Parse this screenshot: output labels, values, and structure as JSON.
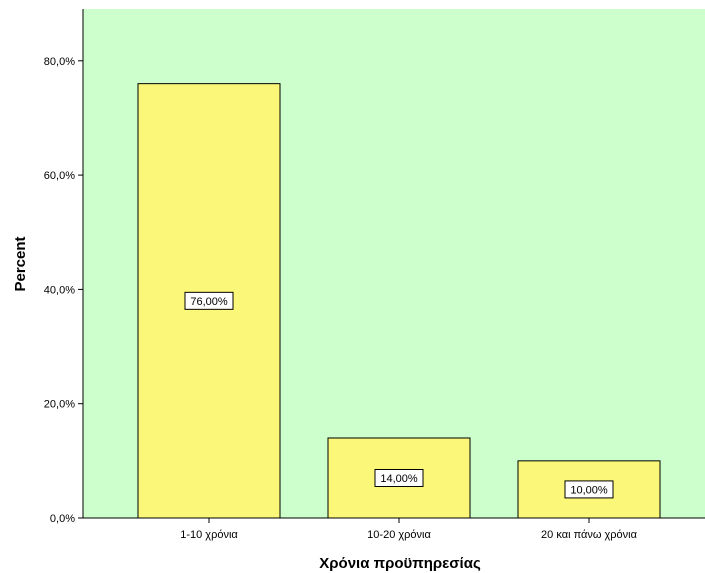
{
  "chart_data": {
    "type": "bar",
    "categories": [
      "1-10 χρόνια",
      "10-20 χρόνια",
      "20 και πάνω χρόνια"
    ],
    "values": [
      76.0,
      14.0,
      10.0
    ],
    "data_labels": [
      "76,00%",
      "14,00%",
      "10,00%"
    ],
    "title": "",
    "xlabel": "Χρόνια προϋπηρεσίας",
    "ylabel": "Percent",
    "ylim": [
      0,
      88
    ],
    "y_ticks": [
      0,
      20,
      40,
      60,
      80
    ],
    "y_tick_labels": [
      "0,0%",
      "20,0%",
      "40,0%",
      "60,0%",
      "80,0%"
    ],
    "grid": false,
    "colors": {
      "plot_background": "#ccffcc",
      "bar_fill": "#fbf779",
      "bar_stroke": "#000000",
      "label_box_fill": "#ffffff"
    }
  }
}
